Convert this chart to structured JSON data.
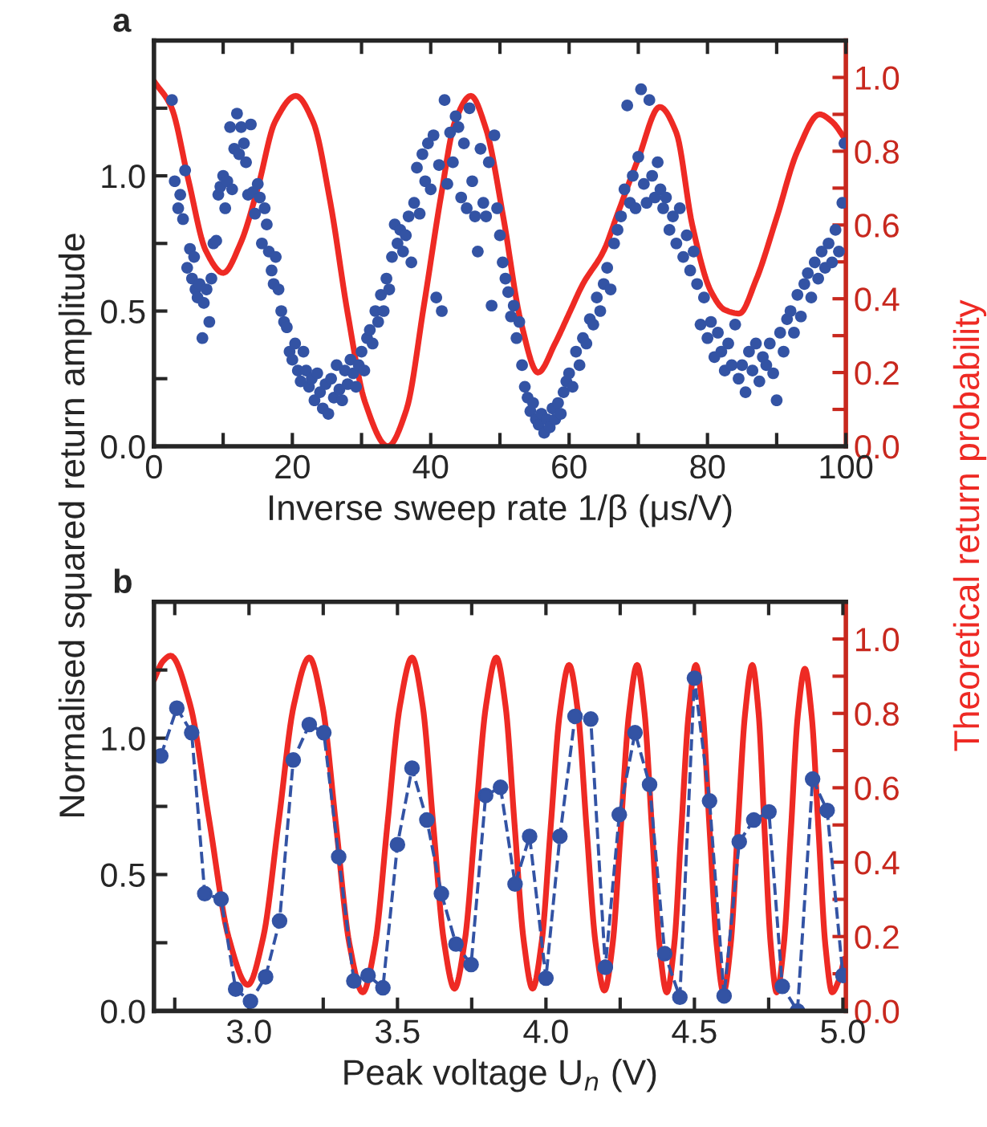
{
  "chart_data": [
    {
      "type": "scatter",
      "title": "a",
      "xlabel": "Inverse sweep rate 1/β (μs/V)",
      "ylabel": "Normalised squared return amplitude",
      "y2label": "Theoretical return probability",
      "xlim": [
        0,
        100
      ],
      "xticks": [
        0,
        {
          "value": 10,
          "label": null
        },
        20,
        {
          "value": 30,
          "label": null
        },
        40,
        {
          "value": 50,
          "label": null
        },
        60,
        {
          "value": 70,
          "label": null
        },
        80,
        {
          "value": 90,
          "label": null
        },
        100
      ],
      "ylim": [
        0,
        1.5
      ],
      "yticks": [
        {
          "value": 0,
          "label": "0.0"
        },
        {
          "value": 0.25,
          "label": null
        },
        {
          "value": 0.5,
          "label": "0.5"
        },
        {
          "value": 0.75,
          "label": null
        },
        {
          "value": 1.0,
          "label": "1.0"
        },
        {
          "value": 1.25,
          "label": null
        }
      ],
      "y2lim": [
        0,
        1.1
      ],
      "y2ticks": [
        {
          "value": 0,
          "label": "0.0"
        },
        {
          "value": 0.1,
          "label": null
        },
        {
          "value": 0.2,
          "label": "0.2"
        },
        {
          "value": 0.3,
          "label": null
        },
        {
          "value": 0.4,
          "label": "0.4"
        },
        {
          "value": 0.5,
          "label": null
        },
        {
          "value": 0.6,
          "label": "0.6"
        },
        {
          "value": 0.7,
          "label": null
        },
        {
          "value": 0.8,
          "label": "0.8"
        },
        {
          "value": 0.9,
          "label": null
        },
        {
          "value": 1.0,
          "label": "1.0"
        }
      ],
      "grid": false,
      "legend": false,
      "series": [
        {
          "color": "#3353a4",
          "marker": "circle",
          "x": [
            2.6,
            3,
            3.5,
            3.8,
            4.2,
            4.5,
            4.8,
            5.2,
            5.5,
            5.8,
            6,
            6.3,
            6.6,
            7,
            7.2,
            7.6,
            8,
            8.3,
            8.6,
            9,
            9.3,
            9.6,
            10,
            10.3,
            10.6,
            11,
            11.3,
            11.6,
            12,
            12.3,
            12.6,
            13,
            13.3,
            13.6,
            14,
            14.3,
            14.6,
            15,
            15.3,
            15.6,
            16,
            16.3,
            16.6,
            17,
            17.3,
            17.6,
            18,
            18.4,
            18.8,
            19.2,
            19.6,
            20,
            20.4,
            20.8,
            21.2,
            21.6,
            22,
            22.4,
            22.8,
            23.2,
            23.6,
            24,
            24.4,
            24.8,
            25.2,
            25.6,
            26,
            26.4,
            26.8,
            27.2,
            27.6,
            28,
            28.4,
            28.8,
            29.2,
            29.6,
            30,
            30.4,
            30.8,
            31.2,
            31.6,
            32,
            32.4,
            32.8,
            33.2,
            33.6,
            34,
            34.4,
            34.8,
            35.2,
            35.6,
            36,
            36.4,
            36.8,
            37.2,
            37.6,
            38,
            38.4,
            38.8,
            39.2,
            39.6,
            40,
            40.4,
            40.8,
            41.2,
            41.6,
            42,
            42.4,
            42.8,
            43.2,
            43.6,
            44,
            44.4,
            44.8,
            45.2,
            45.6,
            46,
            46.4,
            46.8,
            47.2,
            47.6,
            48,
            48.4,
            48.8,
            49.2,
            49.6,
            50,
            50.4,
            50.8,
            51.2,
            51.6,
            52,
            52.4,
            52.8,
            53.2,
            53.6,
            54,
            54.4,
            54.8,
            55.2,
            55.6,
            56,
            56.4,
            56.8,
            57.2,
            57.6,
            58,
            58.4,
            58.8,
            59.2,
            59.6,
            60,
            60.5,
            61,
            61.5,
            62,
            62.5,
            63,
            63.5,
            64,
            64.5,
            65,
            65.5,
            66,
            66.5,
            67,
            67.5,
            68,
            68.4,
            68.8,
            69.2,
            69.6,
            70,
            70.4,
            70.8,
            71.2,
            71.6,
            72,
            72.4,
            72.8,
            73.2,
            73.6,
            74,
            74.5,
            75,
            75.5,
            76,
            76.5,
            77,
            77.5,
            78,
            78.5,
            79,
            79.5,
            80,
            80.5,
            81,
            81.5,
            82,
            82.5,
            83,
            83.5,
            84,
            84.5,
            85,
            85.5,
            86,
            86.5,
            87,
            87.5,
            88,
            88.5,
            89,
            89.5,
            90,
            90.5,
            91,
            91.5,
            92,
            92.5,
            93,
            93.5,
            94,
            94.5,
            95,
            95.5,
            96,
            96.5,
            97,
            97.5,
            98,
            98.5,
            99,
            99.5,
            99.8
          ],
          "values": [
            1.28,
            0.98,
            0.88,
            0.93,
            0.84,
            1.02,
            0.66,
            0.73,
            0.62,
            0.7,
            0.58,
            0.55,
            0.6,
            0.4,
            0.53,
            0.58,
            0.46,
            0.62,
            0.75,
            0.76,
            0.93,
            0.96,
            1.0,
            0.88,
            0.98,
            1.18,
            0.95,
            1.1,
            1.23,
            1.08,
            1.18,
            1.12,
            1.05,
            0.93,
            1.19,
            0.94,
            0.86,
            0.97,
            0.92,
            0.75,
            0.88,
            0.82,
            0.72,
            0.65,
            0.6,
            0.7,
            0.58,
            0.5,
            0.46,
            0.44,
            0.35,
            0.32,
            0.38,
            0.28,
            0.24,
            0.35,
            0.28,
            0.22,
            0.25,
            0.17,
            0.27,
            0.2,
            0.14,
            0.23,
            0.12,
            0.25,
            0.18,
            0.3,
            0.21,
            0.17,
            0.28,
            0.23,
            0.32,
            0.27,
            0.22,
            0.3,
            0.35,
            0.28,
            0.4,
            0.43,
            0.38,
            0.5,
            0.46,
            0.56,
            0.5,
            0.62,
            0.58,
            0.7,
            0.82,
            0.75,
            0.8,
            0.72,
            0.78,
            0.85,
            0.68,
            0.9,
            1.03,
            0.86,
            1.08,
            0.98,
            1.12,
            0.95,
            1.15,
            0.55,
            1.04,
            0.5,
            1.28,
            0.97,
            1.16,
            1.05,
            1.22,
            1.18,
            0.92,
            1.12,
            0.88,
            1.25,
            0.98,
            0.85,
            0.72,
            1.1,
            0.9,
            0.85,
            1.05,
            0.52,
            1.15,
            0.88,
            0.78,
            0.68,
            0.62,
            0.57,
            0.48,
            0.52,
            0.4,
            0.46,
            0.3,
            0.22,
            0.18,
            0.13,
            0.16,
            0.1,
            0.08,
            0.12,
            0.05,
            0.1,
            0.07,
            0.14,
            0.1,
            0.16,
            0.12,
            0.2,
            0.24,
            0.27,
            0.22,
            0.35,
            0.3,
            0.4,
            0.38,
            0.47,
            0.45,
            0.55,
            0.5,
            0.6,
            0.66,
            0.58,
            0.75,
            0.8,
            0.85,
            0.95,
            1.26,
            0.9,
            1.0,
            0.88,
            1.07,
            1.32,
            0.97,
            0.9,
            1.28,
            1.0,
            0.92,
            1.05,
            0.95,
            0.88,
            0.92,
            0.8,
            0.85,
            0.75,
            0.88,
            0.7,
            0.78,
            0.65,
            0.72,
            0.6,
            0.45,
            0.55,
            0.4,
            0.46,
            0.33,
            0.42,
            0.35,
            0.28,
            0.38,
            0.3,
            0.45,
            0.25,
            0.3,
            0.2,
            0.35,
            0.28,
            0.38,
            0.24,
            0.33,
            0.3,
            0.38,
            0.27,
            0.17,
            0.42,
            0.35,
            0.47,
            0.5,
            0.42,
            0.56,
            0.48,
            0.6,
            0.64,
            0.55,
            0.68,
            0.62,
            0.72,
            0.66,
            0.75,
            0.68,
            0.8,
            0.72,
            0.9,
            1.12
          ]
        },
        {
          "type": "line",
          "axis": "y2",
          "color": "#ee2a24",
          "line_style": "solid",
          "x": [
            0,
            2.5,
            5,
            7.5,
            10,
            12.5,
            15,
            17.5,
            20.5,
            23,
            25.5,
            28,
            30.5,
            33.8,
            36.5,
            39,
            41.5,
            43.5,
            45.8,
            48,
            50.5,
            53,
            55.5,
            58,
            60,
            62,
            65,
            67,
            70,
            73.1,
            75.5,
            77.8,
            80.5,
            82.5,
            84.6,
            87,
            90,
            93,
            96.2,
            98,
            100
          ],
          "values": [
            0.99,
            0.92,
            0.72,
            0.53,
            0.47,
            0.55,
            0.7,
            0.88,
            0.95,
            0.88,
            0.66,
            0.36,
            0.12,
            0.0,
            0.1,
            0.38,
            0.68,
            0.88,
            0.95,
            0.86,
            0.62,
            0.34,
            0.2,
            0.28,
            0.36,
            0.44,
            0.53,
            0.63,
            0.78,
            0.92,
            0.85,
            0.6,
            0.42,
            0.37,
            0.36,
            0.45,
            0.62,
            0.8,
            0.9,
            0.88,
            0.83
          ]
        }
      ]
    },
    {
      "type": "line",
      "title": "b",
      "xlabel": "Peak voltage U$_{n}$ (V)",
      "xlim": [
        2.68,
        5.01
      ],
      "xticks": [
        {
          "value": 2.75,
          "label": null
        },
        {
          "value": 3.0,
          "label": "3.0"
        },
        {
          "value": 3.25,
          "label": null
        },
        {
          "value": 3.5,
          "label": "3.5"
        },
        {
          "value": 3.75,
          "label": null
        },
        {
          "value": 4.0,
          "label": "4.0"
        },
        {
          "value": 4.25,
          "label": null
        },
        {
          "value": 4.5,
          "label": "4.5"
        },
        {
          "value": 4.75,
          "label": null
        },
        {
          "value": 5.0,
          "label": "5.0"
        }
      ],
      "ylim": [
        0,
        1.5
      ],
      "yticks": [
        {
          "value": 0,
          "label": "0.0"
        },
        {
          "value": 0.25,
          "label": null
        },
        {
          "value": 0.5,
          "label": "0.5"
        },
        {
          "value": 0.75,
          "label": null
        },
        {
          "value": 1.0,
          "label": "1.0"
        },
        {
          "value": 1.25,
          "label": null
        }
      ],
      "y2lim": [
        0,
        1.1
      ],
      "y2ticks": [
        {
          "value": 0,
          "label": "0.0"
        },
        {
          "value": 0.1,
          "label": null
        },
        {
          "value": 0.2,
          "label": "0.2"
        },
        {
          "value": 0.3,
          "label": null
        },
        {
          "value": 0.4,
          "label": "0.4"
        },
        {
          "value": 0.5,
          "label": null
        },
        {
          "value": 0.6,
          "label": "0.6"
        },
        {
          "value": 0.7,
          "label": null
        },
        {
          "value": 0.8,
          "label": "0.8"
        },
        {
          "value": 0.9,
          "label": null
        },
        {
          "value": 1.0,
          "label": "1.0"
        }
      ],
      "grid": false,
      "legend": false,
      "series": [
        {
          "color": "#3353a4",
          "marker": "circle",
          "line_style": "dashed",
          "x": [
            2.703,
            2.757,
            2.807,
            2.851,
            2.906,
            2.955,
            3.005,
            3.056,
            3.103,
            3.149,
            3.203,
            3.252,
            3.302,
            3.353,
            3.401,
            3.451,
            3.5,
            3.549,
            3.599,
            3.648,
            3.697,
            3.748,
            3.797,
            3.847,
            3.896,
            3.945,
            4.0,
            4.047,
            4.098,
            4.151,
            4.2,
            4.247,
            4.3,
            4.349,
            4.4,
            4.451,
            4.5,
            4.551,
            4.6,
            4.651,
            4.7,
            4.751,
            4.796,
            4.847,
            4.898,
            4.947,
            5.0
          ],
          "values": [
            0.935,
            1.11,
            1.02,
            0.43,
            0.41,
            0.08,
            0.035,
            0.125,
            0.33,
            0.92,
            1.05,
            1.02,
            0.565,
            0.11,
            0.13,
            0.085,
            0.61,
            0.89,
            0.7,
            0.43,
            0.245,
            0.17,
            0.79,
            0.82,
            0.465,
            0.64,
            0.12,
            0.64,
            1.08,
            1.07,
            0.16,
            0.72,
            1.02,
            0.83,
            0.21,
            0.05,
            1.22,
            0.77,
            0.055,
            0.62,
            0.7,
            0.73,
            0.09,
            0.0,
            0.85,
            0.735,
            0.13
          ]
        },
        {
          "axis": "y2",
          "color": "#ee2a24",
          "line_style": "solid",
          "marker": "none",
          "x": [
            2.68,
            2.71,
            2.736,
            2.801,
            2.866,
            2.931,
            2.996,
            3.048,
            3.1,
            3.151,
            3.203,
            3.248,
            3.293,
            3.338,
            3.383,
            3.425,
            3.466,
            3.508,
            3.549,
            3.585,
            3.62,
            3.656,
            3.692,
            3.727,
            3.762,
            3.798,
            3.833,
            3.864,
            3.894,
            3.925,
            3.955,
            3.986,
            4.016,
            4.047,
            4.078,
            4.108,
            4.137,
            4.167,
            4.197,
            4.225,
            4.252,
            4.28,
            4.307,
            4.332,
            4.357,
            4.382,
            4.407,
            4.432,
            4.456,
            4.481,
            4.505,
            4.528,
            4.551,
            4.575,
            4.598,
            4.622,
            4.646,
            4.671,
            4.695,
            4.716,
            4.736,
            4.757,
            4.777,
            4.801,
            4.825,
            4.848,
            4.872,
            4.895,
            4.918,
            4.941,
            4.964,
            4.985,
            5.005
          ],
          "values": [
            0.89,
            0.94,
            0.955,
            0.826,
            0.513,
            0.199,
            0.07,
            0.198,
            0.51,
            0.822,
            0.95,
            0.818,
            0.5,
            0.181,
            0.05,
            0.181,
            0.5,
            0.819,
            0.95,
            0.82,
            0.505,
            0.19,
            0.06,
            0.19,
            0.505,
            0.82,
            0.95,
            0.82,
            0.505,
            0.19,
            0.06,
            0.187,
            0.495,
            0.803,
            0.93,
            0.802,
            0.49,
            0.183,
            0.055,
            0.183,
            0.49,
            0.802,
            0.93,
            0.802,
            0.49,
            0.178,
            0.05,
            0.178,
            0.49,
            0.802,
            0.93,
            0.802,
            0.49,
            0.178,
            0.05,
            0.178,
            0.49,
            0.802,
            0.93,
            0.802,
            0.49,
            0.178,
            0.05,
            0.177,
            0.485,
            0.793,
            0.92,
            0.793,
            0.485,
            0.177,
            0.05,
            0.08,
            0.14
          ]
        }
      ]
    }
  ]
}
